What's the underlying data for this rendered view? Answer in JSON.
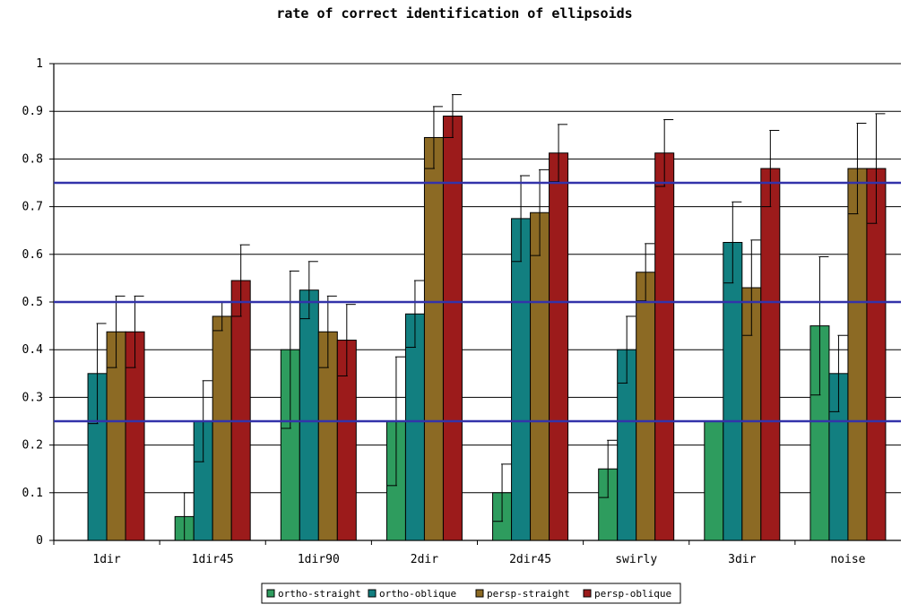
{
  "chart_data": {
    "type": "bar",
    "title": "rate of correct identification of ellipsoids",
    "xlabel": "",
    "ylabel": "",
    "ylim": [
      0,
      1
    ],
    "yticks": [
      "0",
      "0.1",
      "0.2",
      "0.3",
      "0.4",
      "0.5",
      "0.6",
      "0.7",
      "0.8",
      "0.9",
      "1"
    ],
    "grid": true,
    "legend_position": "bottom",
    "categories": [
      "1dir",
      "1dir45",
      "1dir90",
      "2dir",
      "2dir45",
      "swirly",
      "3dir",
      "noise"
    ],
    "series": [
      {
        "name": "ortho-straight",
        "color": "#2e9c5e",
        "values": [
          0,
          0.05,
          0.4,
          0.25,
          0.1,
          0.15,
          0.25,
          0.45
        ],
        "error": [
          0,
          0.05,
          0.165,
          0.135,
          0.06,
          0.06,
          0,
          0.145
        ]
      },
      {
        "name": "ortho-oblique",
        "color": "#127f80",
        "values": [
          0.35,
          0.25,
          0.525,
          0.475,
          0.675,
          0.4,
          0.625,
          0.35
        ],
        "error": [
          0.105,
          0.085,
          0.06,
          0.07,
          0.09,
          0.07,
          0.085,
          0.08
        ]
      },
      {
        "name": "persp-straight",
        "color": "#8c6a24",
        "values": [
          0.4375,
          0.47,
          0.4375,
          0.845,
          0.6875,
          0.5625,
          0.53,
          0.78
        ],
        "error": [
          0.075,
          0.03,
          0.075,
          0.065,
          0.09,
          0.06,
          0.1,
          0.095
        ]
      },
      {
        "name": "persp-oblique",
        "color": "#9c1b1b",
        "values": [
          0.4375,
          0.545,
          0.42,
          0.89,
          0.8125,
          0.8125,
          0.78,
          0.78
        ],
        "error": [
          0.075,
          0.075,
          0.075,
          0.045,
          0.06,
          0.07,
          0.08,
          0.115
        ]
      }
    ],
    "reference_lines": {
      "color": "#3333aa",
      "values": [
        0.25,
        0.5,
        0.75
      ]
    }
  }
}
